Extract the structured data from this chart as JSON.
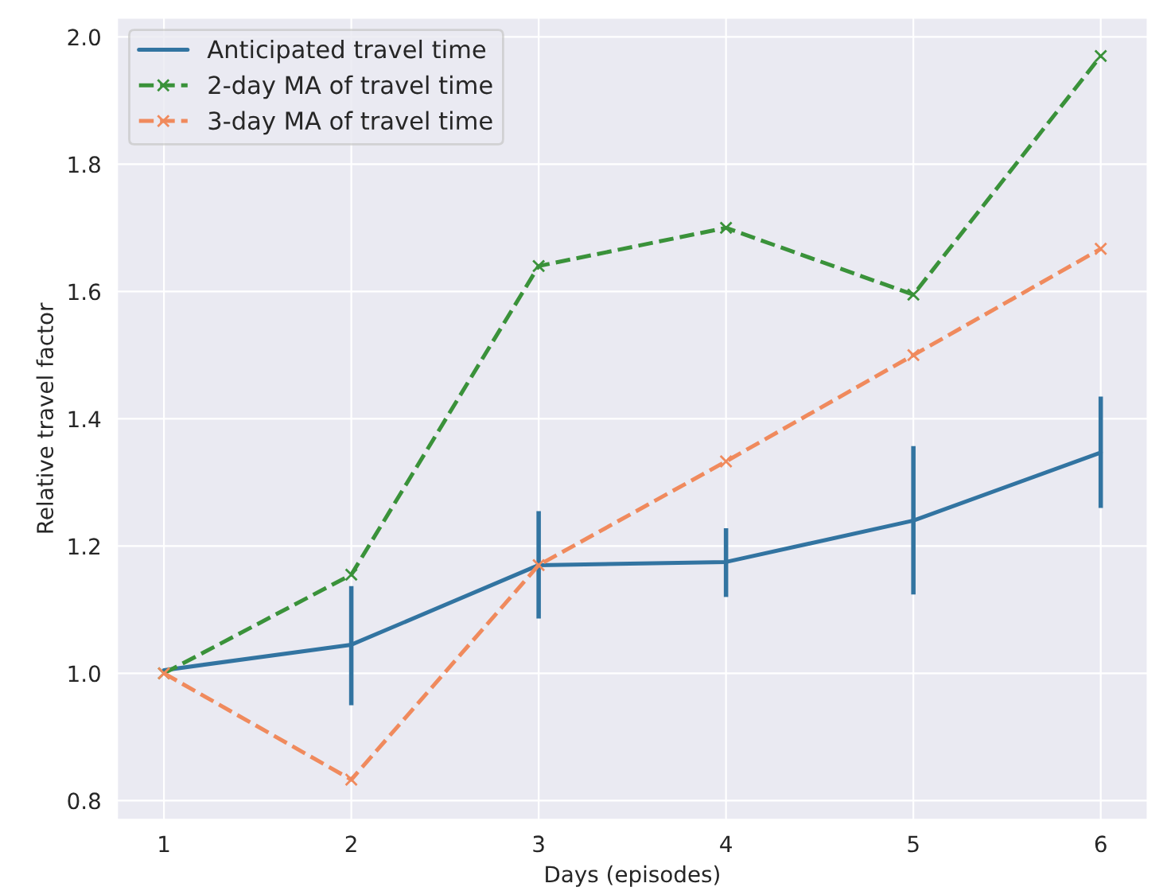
{
  "chart_data": {
    "type": "line",
    "xlabel": "Days (episodes)",
    "ylabel": "Relative travel factor",
    "x": [
      1,
      2,
      3,
      4,
      5,
      6
    ],
    "series": [
      {
        "name": "Anticipated travel time",
        "color": "#3274a1",
        "values": [
          1.005,
          1.045,
          1.17,
          1.175,
          1.24,
          1.347
        ],
        "errors": [
          null,
          [
            0.95,
            1.137
          ],
          [
            1.086,
            1.255
          ],
          [
            1.12,
            1.228
          ],
          [
            1.124,
            1.357
          ],
          [
            1.26,
            1.435
          ]
        ],
        "line_style": "solid",
        "marker": "none"
      },
      {
        "name": "2-day MA of travel time",
        "color": "#3a923a",
        "values": [
          1.0,
          1.155,
          1.64,
          1.7,
          1.595,
          1.97
        ],
        "line_style": "dashed",
        "marker": "cross"
      },
      {
        "name": "3-day MA of travel time",
        "color": "#f08a5d",
        "values": [
          1.0,
          0.833,
          1.17,
          1.333,
          1.5,
          1.667
        ],
        "line_style": "dashed",
        "marker": "cross"
      }
    ],
    "xlim": [
      0.75,
      6.25
    ],
    "ylim": [
      0.77,
      2.03
    ],
    "xticks": [
      1,
      2,
      3,
      4,
      5,
      6
    ],
    "yticks": [
      0.8,
      {
        "value": 1,
        "label": "1.0"
      },
      1.2,
      1.4,
      1.6,
      1.8,
      {
        "value": 2,
        "label": "2.0"
      }
    ],
    "grid": true,
    "legend": "top left"
  }
}
